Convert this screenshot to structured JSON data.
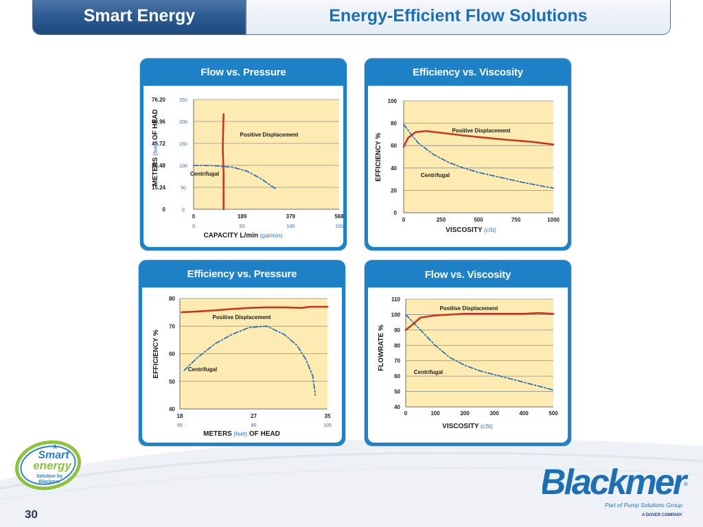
{
  "header": {
    "section": "Smart Energy",
    "title": "Energy-Efficient Flow Solutions"
  },
  "page_number": "30",
  "logos": {
    "smart_energy": [
      "A",
      "Smart",
      "energy",
      "Solution by",
      "Blackmer"
    ],
    "blackmer": {
      "brand": "Blackmer",
      "tagline": "Part of Pump Solutions Group",
      "company": "A DOVER COMPANY"
    }
  },
  "colors": {
    "pd": "#c8361e",
    "centrifugal": "#2e6fb4",
    "plot_bg": "#fdebb2",
    "panel_header": "#1f82c6"
  },
  "chart_data": [
    {
      "type": "line",
      "title": "Flow vs. Pressure",
      "xlabel": "CAPACITY L/min",
      "xlabel_unit": "(gal/min)",
      "ylabel": "METERS",
      "ylabel_unit": "(feet)",
      "ylabel_tail": "OF HEAD",
      "xlim": [
        0,
        568
      ],
      "ylim": [
        0,
        76.2
      ],
      "x_ticks": [
        "0",
        "189",
        "379",
        "568"
      ],
      "x_ticks_alt": [
        "0",
        "50",
        "100",
        "150"
      ],
      "y_ticks": [
        "0",
        "15.24",
        "30.48",
        "45.72",
        "60.96",
        "76.20"
      ],
      "y_ticks_alt": [
        "0",
        "50",
        "100",
        "150",
        "200",
        "250"
      ],
      "series": [
        {
          "name": "Positive Displacement",
          "style": "solid",
          "x": [
            117,
            117,
            114,
            116,
            117
          ],
          "y": [
            0,
            25,
            42,
            60,
            66
          ]
        },
        {
          "name": "Centrifugal",
          "style": "dashdot",
          "x": [
            0,
            76,
            152,
            208,
            265,
            322
          ],
          "y": [
            30.5,
            30.3,
            29.2,
            26.5,
            21,
            14
          ]
        }
      ]
    },
    {
      "type": "line",
      "title": "Efficiency vs. Viscosity",
      "xlabel": "VISCOSITY",
      "xlabel_unit": "(cSt)",
      "ylabel": "EFFICIENCY %",
      "xlim": [
        0,
        1000
      ],
      "ylim": [
        0,
        100
      ],
      "x_ticks": [
        "0",
        "250",
        "500",
        "750",
        "1000"
      ],
      "y_ticks": [
        "0",
        "20",
        "40",
        "60",
        "80",
        "100"
      ],
      "series": [
        {
          "name": "Positive Displacement",
          "style": "solid",
          "x": [
            0,
            30,
            80,
            150,
            250,
            400,
            550,
            700,
            850,
            1000
          ],
          "y": [
            59,
            67,
            72,
            73,
            71.5,
            69,
            67,
            65,
            63.5,
            61
          ]
        },
        {
          "name": "Centrifugal",
          "style": "dashdot",
          "x": [
            0,
            50,
            100,
            200,
            300,
            400,
            500,
            600,
            700,
            800,
            900,
            1000
          ],
          "y": [
            79,
            70,
            62,
            52,
            45,
            40,
            36,
            33,
            30,
            27,
            24.5,
            22
          ]
        }
      ]
    },
    {
      "type": "line",
      "title": "Efficiency vs. Pressure",
      "xlabel": "METERS",
      "xlabel_unit": "(feet)",
      "xlabel_tail": "OF HEAD",
      "ylabel": "EFFICIENCY %",
      "xlim": [
        18,
        35
      ],
      "ylim": [
        40,
        80
      ],
      "x_ticks": [
        "18",
        "27",
        "35"
      ],
      "x_ticks_alt": [
        "55",
        "80",
        "105"
      ],
      "y_ticks": [
        "40",
        "50",
        "60",
        "70",
        "80"
      ],
      "series": [
        {
          "name": "Positive Displacement",
          "style": "solid",
          "x": [
            18.2,
            20,
            22,
            24,
            26,
            28,
            30,
            32,
            33,
            35
          ],
          "y": [
            75,
            75.3,
            75.7,
            76.2,
            76.6,
            76.8,
            76.8,
            76.6,
            77,
            77
          ]
        },
        {
          "name": "Centrifugal",
          "style": "dashdot",
          "x": [
            18.5,
            20,
            22,
            24,
            26,
            28,
            30,
            31.5,
            32.5,
            33.3,
            33.6
          ],
          "y": [
            54,
            58.5,
            63.5,
            67,
            69.5,
            70,
            67,
            63,
            58,
            52,
            45
          ]
        }
      ]
    },
    {
      "type": "line",
      "title": "Flow vs. Viscosity",
      "xlabel": "VISCOSITY",
      "xlabel_unit": "(cSt)",
      "ylabel": "FLOWRATE %",
      "xlim": [
        0,
        500
      ],
      "ylim": [
        40,
        110
      ],
      "x_ticks": [
        "0",
        "100",
        "200",
        "300",
        "400",
        "500"
      ],
      "y_ticks": [
        "40",
        "50",
        "60",
        "70",
        "80",
        "90",
        "100",
        "110"
      ],
      "series": [
        {
          "name": "Positive Displacement",
          "style": "solid",
          "x": [
            0,
            20,
            50,
            100,
            150,
            200,
            250,
            300,
            350,
            400,
            450,
            500
          ],
          "y": [
            90,
            93,
            98,
            99.5,
            100,
            100.5,
            100.5,
            100.5,
            100.5,
            100.5,
            101,
            100.5
          ]
        },
        {
          "name": "Centrifugal",
          "style": "dashdot",
          "x": [
            0,
            30,
            60,
            100,
            150,
            200,
            250,
            300,
            350,
            400,
            450,
            500
          ],
          "y": [
            100,
            94,
            88,
            80,
            72,
            67,
            63.5,
            61,
            58.5,
            56,
            53.5,
            51
          ]
        }
      ]
    }
  ]
}
